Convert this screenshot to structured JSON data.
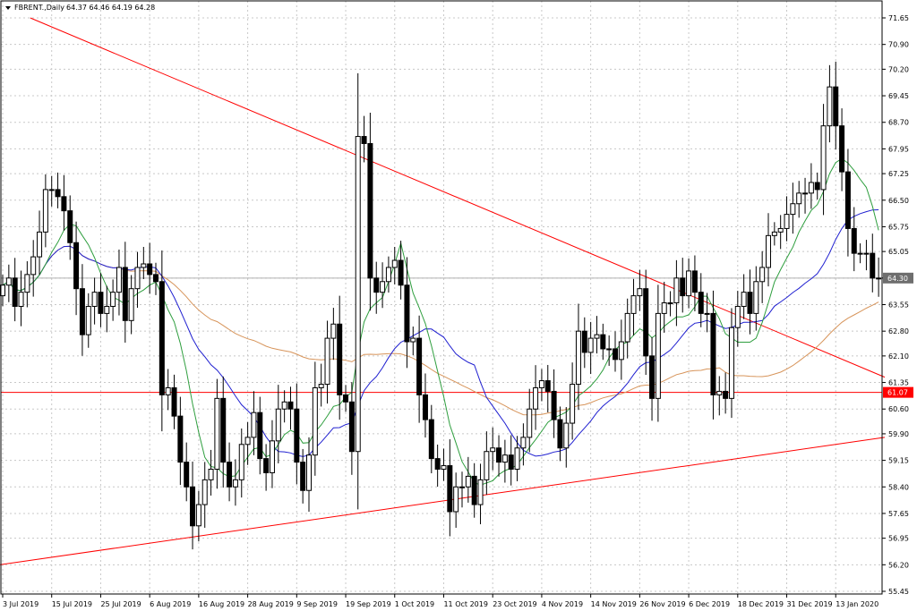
{
  "window": {
    "symbol_label": "FBRENT.,Daily",
    "ohlc_label": "64.37 64.46 64.19 64.28",
    "menu_icon": "triangle-down-icon"
  },
  "colors": {
    "grid": "#c8c8c8",
    "candle": "#000000",
    "ma_fast": "#2e9e3e",
    "ma_mid": "#1f1fd0",
    "ma_slow": "#d7945a",
    "trendline": "#ff0000",
    "price_tag": "#6e6e6e",
    "level_tag": "#ff0000"
  },
  "chart_data": {
    "type": "candlestick",
    "ylim": [
      55.45,
      71.65
    ],
    "y_ticks": [
      "71.65",
      "70.90",
      "70.20",
      "69.45",
      "68.70",
      "67.95",
      "67.25",
      "66.50",
      "65.75",
      "65.05",
      "64.30",
      "63.55",
      "62.80",
      "62.10",
      "61.35",
      "60.60",
      "59.90",
      "59.15",
      "58.40",
      "57.65",
      "56.95",
      "56.20",
      "55.45"
    ],
    "x_ticks": [
      {
        "label": "3 Jul 2019",
        "i": 0
      },
      {
        "label": "15 Jul 2019",
        "i": 8
      },
      {
        "label": "25 Jul 2019",
        "i": 16
      },
      {
        "label": "6 Aug 2019",
        "i": 24
      },
      {
        "label": "16 Aug 2019",
        "i": 32
      },
      {
        "label": "28 Aug 2019",
        "i": 40
      },
      {
        "label": "9 Sep 2019",
        "i": 48
      },
      {
        "label": "19 Sep 2019",
        "i": 56
      },
      {
        "label": "1 Oct 2019",
        "i": 64
      },
      {
        "label": "11 Oct 2019",
        "i": 72
      },
      {
        "label": "23 Oct 2019",
        "i": 80
      },
      {
        "label": "4 Nov 2019",
        "i": 88
      },
      {
        "label": "14 Nov 2019",
        "i": 96
      },
      {
        "label": "26 Nov 2019",
        "i": 104
      },
      {
        "label": "6 Dec 2019",
        "i": 112
      },
      {
        "label": "18 Dec 2019",
        "i": 120
      },
      {
        "label": "31 Dec 2019",
        "i": 128
      },
      {
        "label": "13 Jan 2020",
        "i": 136
      }
    ],
    "closes": [
      64.1,
      64.3,
      63.5,
      63.9,
      64.4,
      64.9,
      65.6,
      66.8,
      66.8,
      66.6,
      66.2,
      65.3,
      64.0,
      62.7,
      63.5,
      63.9,
      63.3,
      63.5,
      63.9,
      64.6,
      63.1,
      64.0,
      64.6,
      64.7,
      64.4,
      64.2,
      61.0,
      61.2,
      60.4,
      59.1,
      58.4,
      57.3,
      57.9,
      58.6,
      58.9,
      60.9,
      59.1,
      58.4,
      58.6,
      59.6,
      59.8,
      60.5,
      59.2,
      58.8,
      59.7,
      60.6,
      60.8,
      60.6,
      59.1,
      58.3,
      59.3,
      61.2,
      61.3,
      62.6,
      63.0,
      61.0,
      60.8,
      59.4,
      68.3,
      68.1,
      64.3,
      63.9,
      64.2,
      64.6,
      64.8,
      64.1,
      62.5,
      62.6,
      61.0,
      60.3,
      59.2,
      58.9,
      59.0,
      57.7,
      58.4,
      58.4,
      58.7,
      57.9,
      58.6,
      59.4,
      59.5,
      59.1,
      59.3,
      58.9,
      59.5,
      59.8,
      60.6,
      61.2,
      61.4,
      61.1,
      60.3,
      59.5,
      60.2,
      61.3,
      62.8,
      62.2,
      62.6,
      62.7,
      62.3,
      62.3,
      62.0,
      62.5,
      63.3,
      63.8,
      64.0,
      62.1,
      60.9,
      63.3,
      63.6,
      63.6,
      64.3,
      63.8,
      64.5,
      63.9,
      63.3,
      63.3,
      61.0,
      61.1,
      60.9,
      62.9,
      63.5,
      63.9,
      63.3,
      64.2,
      64.6,
      65.5,
      65.6,
      65.7,
      66.1,
      66.4,
      66.7,
      66.7,
      67.0,
      66.8,
      68.6,
      69.7,
      68.6,
      67.3,
      65.7,
      65.0,
      65.0,
      65.0,
      64.3,
      64.3
    ]
  }
}
